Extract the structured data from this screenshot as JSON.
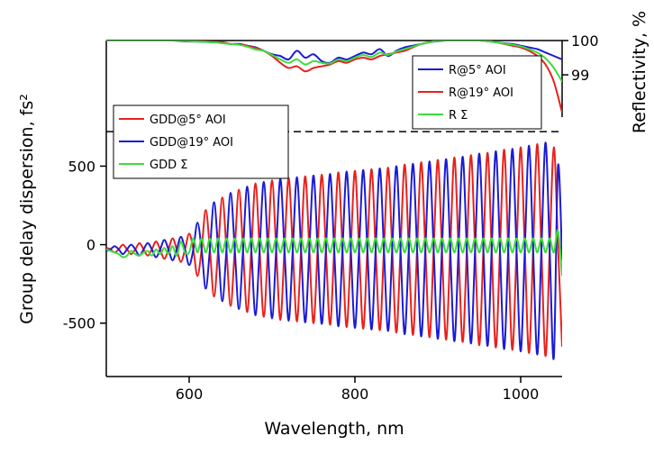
{
  "chart_data": {
    "type": "line",
    "xlabel": "Wavelength, nm",
    "ylabel": "Group delay dispersion, fs²",
    "y2label": "Reflectivity, %",
    "xlim": [
      500,
      1050
    ],
    "xticks": [
      600,
      800,
      1000
    ],
    "ylim": [
      -840,
      1300
    ],
    "yticks": [
      -500,
      0,
      500
    ],
    "y2lim": [
      90.2,
      100
    ],
    "y2ticks": [
      99,
      100
    ],
    "hline": 720,
    "x": [
      500,
      505,
      510,
      515,
      520,
      525,
      530,
      535,
      540,
      545,
      550,
      555,
      560,
      565,
      570,
      575,
      580,
      585,
      590,
      595,
      600,
      605,
      610,
      615,
      620,
      625,
      630,
      635,
      640,
      645,
      650,
      655,
      660,
      665,
      670,
      675,
      680,
      685,
      690,
      695,
      700,
      705,
      710,
      715,
      720,
      725,
      730,
      735,
      740,
      745,
      750,
      755,
      760,
      765,
      770,
      775,
      780,
      785,
      790,
      795,
      800,
      805,
      810,
      815,
      820,
      825,
      830,
      835,
      840,
      845,
      850,
      855,
      860,
      865,
      870,
      875,
      880,
      885,
      890,
      895,
      900,
      905,
      910,
      915,
      920,
      925,
      930,
      935,
      940,
      945,
      950,
      955,
      960,
      965,
      970,
      975,
      980,
      985,
      990,
      995,
      1000,
      1005,
      1010,
      1015,
      1020,
      1025,
      1030,
      1035,
      1040,
      1045,
      1050
    ],
    "series": [
      {
        "name": "GDD@5° AOI",
        "color": "#e8211d",
        "axis": "y",
        "values": [
          -20,
          -30,
          -50,
          -30,
          0,
          -30,
          -60,
          -30,
          10,
          -30,
          -70,
          -30,
          20,
          -30,
          -90,
          -30,
          40,
          -30,
          -110,
          -30,
          70,
          -30,
          -200,
          -30,
          220,
          -30,
          -330,
          -30,
          300,
          -30,
          -390,
          -30,
          350,
          -30,
          -430,
          -30,
          390,
          -30,
          -460,
          -30,
          410,
          -30,
          -480,
          -30,
          425,
          -30,
          -490,
          -30,
          435,
          -30,
          -500,
          -30,
          445,
          -30,
          -510,
          -30,
          460,
          -30,
          -525,
          -30,
          470,
          -30,
          -535,
          -30,
          480,
          -30,
          -545,
          -30,
          490,
          -30,
          -560,
          -30,
          510,
          -30,
          -575,
          -30,
          525,
          -30,
          -590,
          -30,
          540,
          -30,
          -605,
          -30,
          555,
          -30,
          -620,
          -30,
          570,
          -30,
          -640,
          -30,
          585,
          -30,
          -655,
          -30,
          605,
          -30,
          -670,
          -30,
          620,
          -30,
          -690,
          -30,
          640,
          -30,
          -710,
          -30,
          620,
          0,
          -650
        ]
      },
      {
        "name": "GDD@19° AOI",
        "color": "#1b1bd6",
        "axis": "y",
        "values": [
          -40,
          -30,
          -10,
          -30,
          -60,
          -30,
          0,
          -30,
          -70,
          -30,
          10,
          -30,
          -80,
          -30,
          30,
          -30,
          -100,
          -30,
          50,
          -30,
          -130,
          -30,
          140,
          -30,
          -280,
          -30,
          270,
          -30,
          -360,
          -30,
          330,
          -30,
          -410,
          -30,
          370,
          -30,
          -450,
          -30,
          400,
          -30,
          -470,
          -30,
          420,
          -30,
          -485,
          -30,
          430,
          -30,
          -495,
          -30,
          440,
          -30,
          -505,
          -30,
          450,
          -30,
          -520,
          -30,
          465,
          -30,
          -530,
          -30,
          475,
          -30,
          -540,
          -30,
          485,
          -30,
          -550,
          -30,
          500,
          -30,
          -570,
          -30,
          515,
          -30,
          -585,
          -30,
          530,
          -30,
          -600,
          -30,
          545,
          -30,
          -615,
          -30,
          560,
          -30,
          -630,
          -30,
          580,
          -30,
          -645,
          -30,
          595,
          -30,
          -665,
          -30,
          610,
          -30,
          -680,
          -30,
          630,
          -30,
          -700,
          -30,
          650,
          -30,
          -720,
          500,
          -100
        ]
      },
      {
        "name": "GDD Σ",
        "color": "#3ddc3d",
        "axis": "y",
        "values": [
          -30,
          -40,
          -50,
          -60,
          -80,
          -70,
          -40,
          -60,
          -70,
          -50,
          -40,
          -70,
          -30,
          -60,
          -20,
          -60,
          -10,
          -70,
          20,
          -50,
          -50,
          40,
          -50,
          40,
          -50,
          40,
          -50,
          40,
          -50,
          40,
          -50,
          40,
          -50,
          40,
          -50,
          40,
          -50,
          40,
          -50,
          40,
          -50,
          40,
          -50,
          40,
          -50,
          40,
          -50,
          40,
          -50,
          40,
          -50,
          40,
          -50,
          40,
          -50,
          40,
          -50,
          40,
          -50,
          40,
          -50,
          40,
          -50,
          40,
          -50,
          40,
          -50,
          40,
          -50,
          40,
          -50,
          40,
          -50,
          40,
          -50,
          40,
          -50,
          40,
          -50,
          40,
          -50,
          40,
          -50,
          40,
          -50,
          40,
          -50,
          40,
          -50,
          40,
          -50,
          40,
          -50,
          40,
          -50,
          40,
          -50,
          40,
          -50,
          40,
          -50,
          40,
          -50,
          40,
          -50,
          40,
          -50,
          40,
          -50,
          90,
          -200
        ]
      },
      {
        "name": "R@5° AOI",
        "color": "#1b1bd6",
        "axis": "y2",
        "x": [
          500,
          510,
          520,
          530,
          540,
          550,
          560,
          570,
          580,
          590,
          600,
          610,
          620,
          630,
          640,
          650,
          660,
          670,
          680,
          690,
          700,
          710,
          720,
          730,
          740,
          750,
          760,
          770,
          780,
          790,
          800,
          810,
          820,
          830,
          840,
          850,
          860,
          870,
          880,
          890,
          900,
          910,
          920,
          930,
          940,
          950,
          960,
          970,
          980,
          990,
          1000,
          1010,
          1020,
          1030,
          1040,
          1050
        ],
        "values": [
          100,
          100,
          100,
          100,
          100,
          100,
          100,
          100,
          100,
          99.98,
          99.97,
          99.97,
          99.96,
          99.95,
          99.95,
          99.9,
          99.9,
          99.85,
          99.8,
          99.7,
          99.6,
          99.55,
          99.45,
          99.7,
          99.5,
          99.6,
          99.4,
          99.35,
          99.5,
          99.45,
          99.55,
          99.65,
          99.6,
          99.75,
          99.55,
          99.7,
          99.8,
          99.85,
          99.9,
          99.95,
          99.98,
          100,
          100,
          100,
          100,
          100,
          99.98,
          99.95,
          99.92,
          99.9,
          99.85,
          99.8,
          99.75,
          99.65,
          99.55,
          99.45
        ]
      },
      {
        "name": "R@19° AOI",
        "color": "#e8211d",
        "axis": "y2",
        "x": [
          500,
          510,
          520,
          530,
          540,
          550,
          560,
          570,
          580,
          590,
          600,
          610,
          620,
          630,
          640,
          650,
          660,
          670,
          680,
          690,
          700,
          710,
          720,
          730,
          740,
          750,
          760,
          770,
          780,
          790,
          800,
          810,
          820,
          830,
          840,
          850,
          860,
          870,
          880,
          890,
          900,
          910,
          920,
          930,
          940,
          950,
          960,
          970,
          980,
          990,
          1000,
          1010,
          1020,
          1030,
          1040,
          1050
        ],
        "values": [
          100,
          100,
          100,
          100,
          100,
          100,
          100,
          100,
          100,
          100,
          99.98,
          99.98,
          99.97,
          99.96,
          99.95,
          99.9,
          99.88,
          99.85,
          99.78,
          99.7,
          99.55,
          99.35,
          99.2,
          99.25,
          99.1,
          99.2,
          99.25,
          99.3,
          99.4,
          99.35,
          99.45,
          99.5,
          99.45,
          99.55,
          99.6,
          99.65,
          99.7,
          99.8,
          99.9,
          99.95,
          100,
          100,
          100,
          100,
          100,
          100,
          99.98,
          99.95,
          99.9,
          99.85,
          99.8,
          99.7,
          99.55,
          99.3,
          98.8,
          97.9
        ]
      },
      {
        "name": "R Σ",
        "color": "#3ddc3d",
        "axis": "y2",
        "x": [
          500,
          510,
          520,
          530,
          540,
          550,
          560,
          570,
          580,
          590,
          600,
          610,
          620,
          630,
          640,
          650,
          660,
          670,
          680,
          690,
          700,
          710,
          720,
          730,
          740,
          750,
          760,
          770,
          780,
          790,
          800,
          810,
          820,
          830,
          840,
          850,
          860,
          870,
          880,
          890,
          900,
          910,
          920,
          930,
          940,
          950,
          960,
          970,
          980,
          990,
          1000,
          1010,
          1020,
          1030,
          1040,
          1050
        ],
        "values": [
          100,
          100,
          100,
          100,
          100,
          100,
          100,
          100,
          100,
          99.99,
          99.98,
          99.97,
          99.96,
          99.95,
          99.92,
          99.9,
          99.88,
          99.82,
          99.74,
          99.7,
          99.58,
          99.45,
          99.35,
          99.45,
          99.3,
          99.4,
          99.35,
          99.33,
          99.45,
          99.4,
          99.5,
          99.58,
          99.52,
          99.65,
          99.58,
          99.68,
          99.75,
          99.82,
          99.9,
          99.95,
          99.99,
          100,
          100,
          100,
          100,
          100,
          99.98,
          99.95,
          99.91,
          99.88,
          99.83,
          99.75,
          99.65,
          99.48,
          99.2,
          98.8
        ]
      }
    ]
  }
}
